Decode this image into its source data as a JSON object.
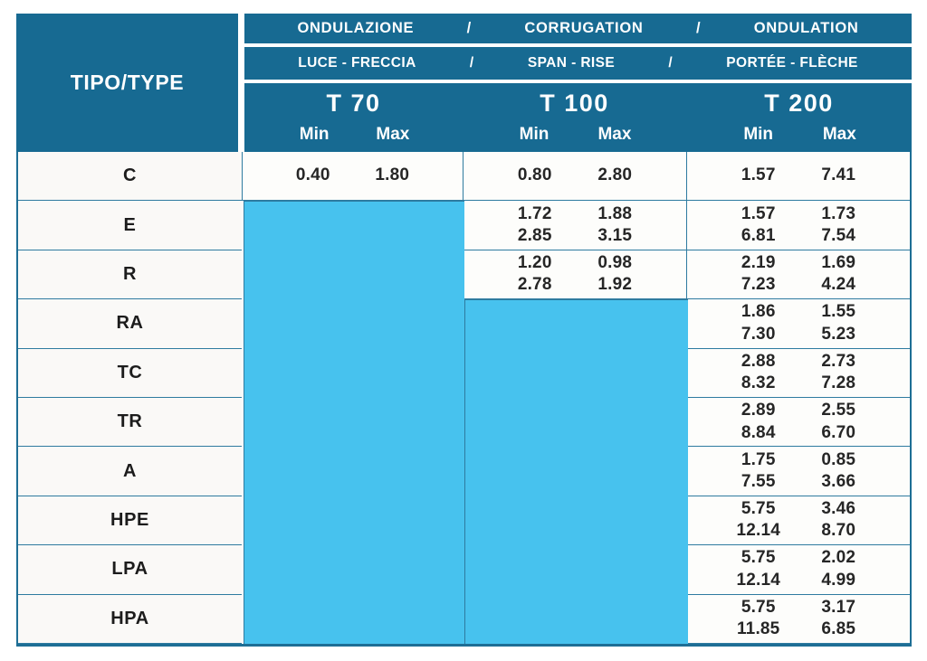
{
  "table": {
    "corner_label": "TIPO/TYPE",
    "header": {
      "separator": "/",
      "row1": [
        "ONDULAZIONE",
        "CORRUGATION",
        "ONDULATION"
      ],
      "row2": [
        "LUCE - FRECCIA",
        "SPAN - RISE",
        "PORTÉE - FLÈCHE"
      ]
    },
    "groups": [
      {
        "id": "t70",
        "title": "T 70",
        "min_label": "Min",
        "max_label": "Max"
      },
      {
        "id": "t100",
        "title": "T 100",
        "min_label": "Min",
        "max_label": "Max"
      },
      {
        "id": "t200",
        "title": "T 200",
        "min_label": "Min",
        "max_label": "Max"
      }
    ],
    "rows": [
      {
        "type": "C",
        "t70": [
          [
            "0.40"
          ],
          [
            "1.80"
          ]
        ],
        "t100": [
          [
            "0.80"
          ],
          [
            "2.80"
          ]
        ],
        "t200": [
          [
            "1.57"
          ],
          [
            "7.41"
          ]
        ]
      },
      {
        "type": "E",
        "t70": null,
        "t100": [
          [
            "1.72",
            "2.85"
          ],
          [
            "1.88",
            "3.15"
          ]
        ],
        "t200": [
          [
            "1.57",
            "6.81"
          ],
          [
            "1.73",
            "7.54"
          ]
        ]
      },
      {
        "type": "R",
        "t70": null,
        "t100": [
          [
            "1.20",
            "2.78"
          ],
          [
            "0.98",
            "1.92"
          ]
        ],
        "t200": [
          [
            "2.19",
            "7.23"
          ],
          [
            "1.69",
            "4.24"
          ]
        ]
      },
      {
        "type": "RA",
        "t70": null,
        "t100": null,
        "t200": [
          [
            "1.86",
            "7.30"
          ],
          [
            "1.55",
            "5.23"
          ]
        ]
      },
      {
        "type": "TC",
        "t70": null,
        "t100": null,
        "t200": [
          [
            "2.88",
            "8.32"
          ],
          [
            "2.73",
            "7.28"
          ]
        ]
      },
      {
        "type": "TR",
        "t70": null,
        "t100": null,
        "t200": [
          [
            "2.89",
            "8.84"
          ],
          [
            "2.55",
            "6.70"
          ]
        ]
      },
      {
        "type": "A",
        "t70": null,
        "t100": null,
        "t200": [
          [
            "1.75",
            "7.55"
          ],
          [
            "0.85",
            "3.66"
          ]
        ]
      },
      {
        "type": "HPE",
        "t70": null,
        "t100": null,
        "t200": [
          [
            "5.75",
            "12.14"
          ],
          [
            "3.46",
            "8.70"
          ]
        ]
      },
      {
        "type": "LPA",
        "t70": null,
        "t100": null,
        "t200": [
          [
            "5.75",
            "12.14"
          ],
          [
            "2.02",
            "4.99"
          ]
        ]
      },
      {
        "type": "HPA",
        "t70": null,
        "t100": null,
        "t200": [
          [
            "5.75",
            "11.85"
          ],
          [
            "3.17",
            "6.85"
          ]
        ]
      }
    ]
  },
  "colors": {
    "header_blue": "#176a92",
    "empty_cyan": "#47c2ee",
    "grid_line": "#2e7ba0",
    "outer_border": "#1e6e95"
  }
}
